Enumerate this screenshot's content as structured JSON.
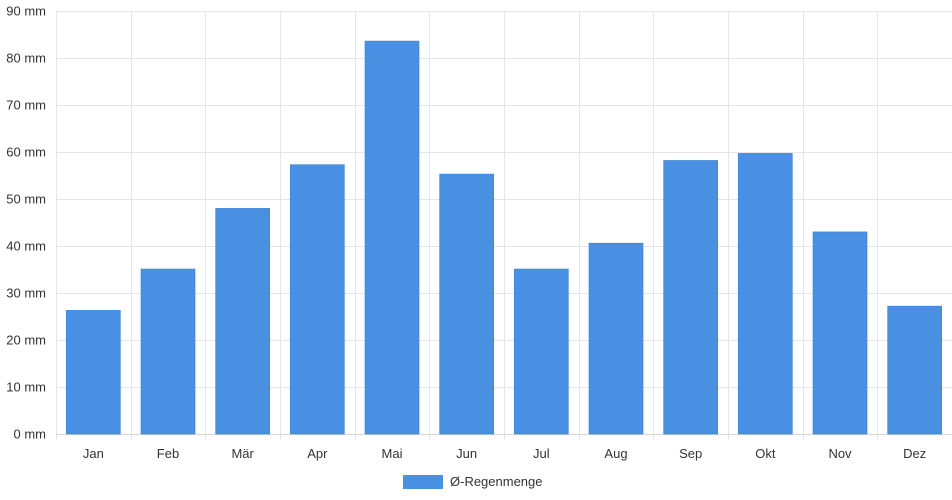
{
  "chart_data": {
    "type": "bar",
    "categories": [
      "Jan",
      "Feb",
      "Mär",
      "Apr",
      "Mai",
      "Jun",
      "Jul",
      "Aug",
      "Sep",
      "Okt",
      "Nov",
      "Dez"
    ],
    "series": [
      {
        "name": "Ø-Regenmenge",
        "color": "#4a90e2",
        "values": [
          26.3,
          35.1,
          48.0,
          57.3,
          83.6,
          55.3,
          35.1,
          40.6,
          58.2,
          59.7,
          43.0,
          27.2
        ]
      }
    ],
    "ylim": [
      0,
      90
    ],
    "yticks": [
      "0 mm",
      "10 mm",
      "20 mm",
      "30 mm",
      "40 mm",
      "50 mm",
      "60 mm",
      "70 mm",
      "80 mm",
      "90 mm"
    ],
    "grid": true,
    "legend_position": "bottom-center"
  }
}
